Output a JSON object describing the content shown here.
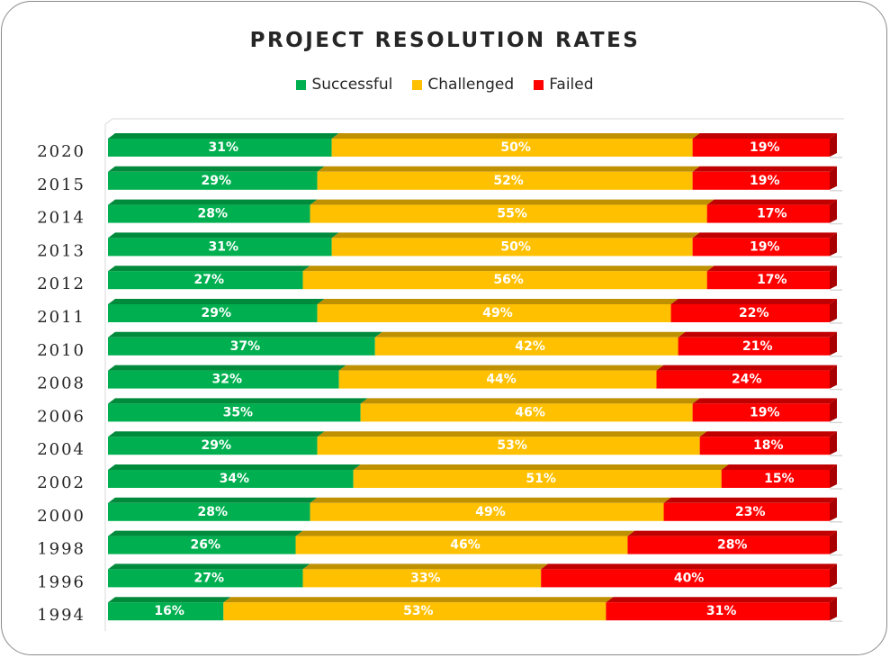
{
  "chart_data": {
    "type": "bar",
    "orientation": "horizontal",
    "stacked": "100%",
    "title": "PROJECT RESOLUTION RATES",
    "xlabel": "",
    "ylabel": "",
    "legend_position": "top",
    "grid": false,
    "xlim": [
      0,
      100
    ],
    "categories": [
      "2020",
      "2015",
      "2014",
      "2013",
      "2012",
      "2011",
      "2010",
      "2008",
      "2006",
      "2004",
      "2002",
      "2000",
      "1998",
      "1996",
      "1994"
    ],
    "series": [
      {
        "name": "Successful",
        "color": "#00b050",
        "values": [
          31,
          29,
          28,
          31,
          27,
          29,
          37,
          32,
          35,
          29,
          34,
          28,
          26,
          27,
          16
        ]
      },
      {
        "name": "Challenged",
        "color": "#ffc000",
        "values": [
          50,
          52,
          55,
          50,
          56,
          49,
          42,
          44,
          46,
          53,
          51,
          49,
          46,
          33,
          53
        ]
      },
      {
        "name": "Failed",
        "color": "#ff0000",
        "values": [
          19,
          19,
          17,
          19,
          17,
          22,
          21,
          24,
          19,
          18,
          15,
          23,
          28,
          40,
          31
        ]
      }
    ],
    "label_suffix": "%"
  },
  "colors": {
    "successful_top": "#008a3c",
    "challenged_top": "#bf9000",
    "failed_top": "#c00000",
    "failed_side": "#a80000"
  }
}
